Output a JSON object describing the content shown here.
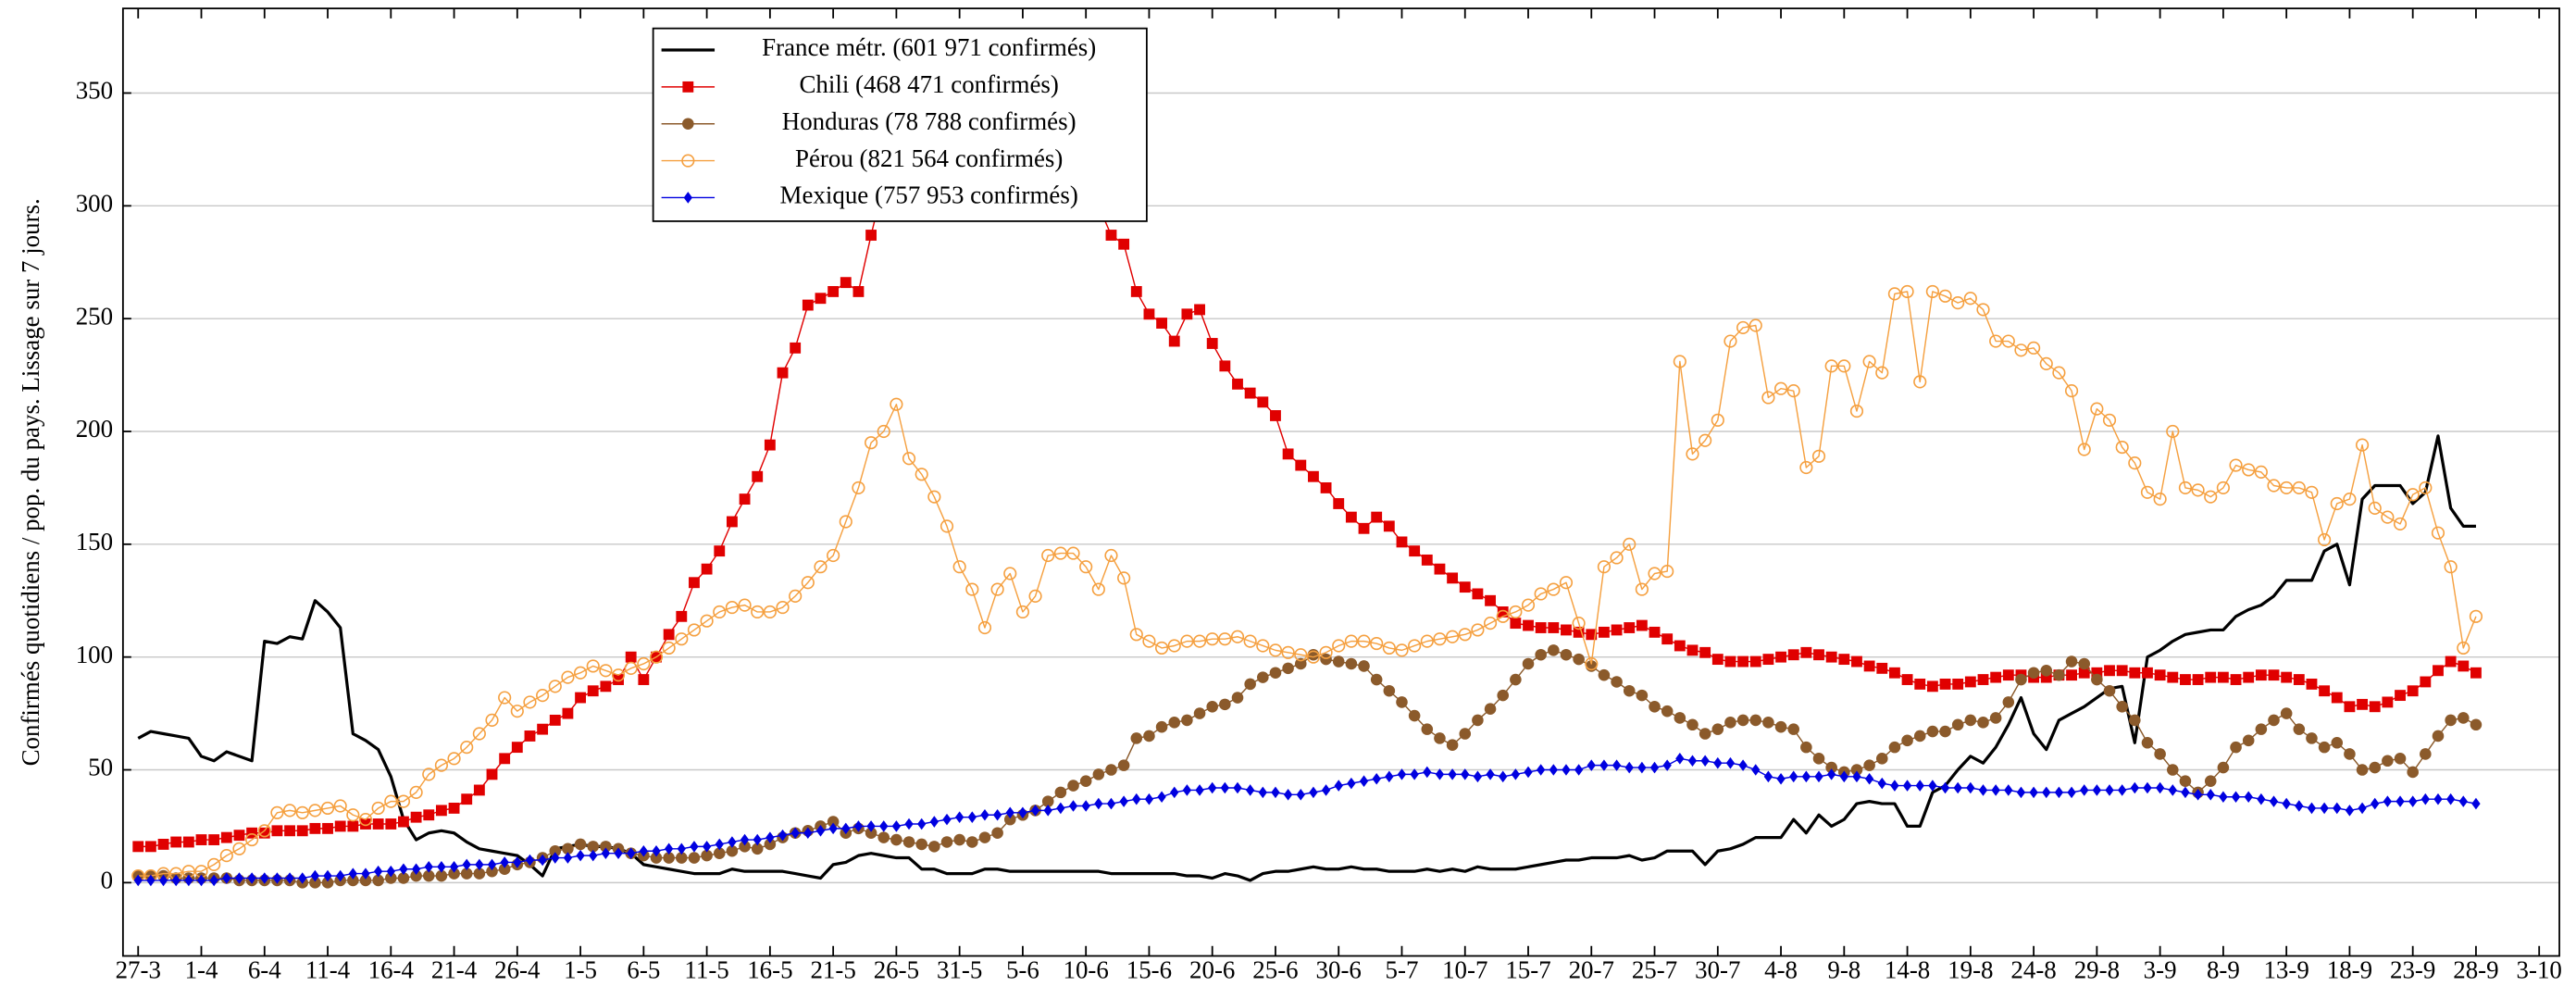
{
  "chart_data": {
    "type": "line",
    "ylabel": "Confirmés quotidiens / pop. du pays. Lissage sur 7 jours.",
    "x": [
      0,
      1,
      2,
      3,
      4,
      5,
      6,
      7,
      8,
      9,
      10,
      11,
      12,
      13,
      14,
      15,
      16,
      17,
      18,
      19,
      20,
      21,
      22,
      23,
      24,
      25,
      26,
      27,
      28,
      29,
      30,
      31,
      32,
      33,
      34,
      35,
      36,
      37,
      38,
      39,
      40,
      41,
      42,
      43,
      44,
      45,
      46,
      47,
      48,
      49,
      50,
      51,
      52,
      53,
      54,
      55,
      56,
      57,
      58,
      59,
      60,
      61,
      62,
      63,
      64,
      65,
      66,
      67,
      68,
      69,
      70,
      71,
      72,
      73,
      74,
      75,
      76,
      77,
      78,
      79,
      80,
      81,
      82,
      83,
      84,
      85,
      86,
      87,
      88,
      89,
      90,
      91,
      92,
      93,
      94,
      95,
      96,
      97,
      98,
      99,
      100,
      101,
      102,
      103,
      104,
      105,
      106,
      107,
      108,
      109,
      110,
      111,
      112,
      113,
      114,
      115,
      116,
      117,
      118,
      119,
      120,
      121,
      122,
      123,
      124,
      125,
      126,
      127,
      128,
      129,
      130,
      131,
      132,
      133,
      134,
      135,
      136,
      137,
      138,
      139,
      140,
      141,
      142,
      143,
      144,
      145,
      146,
      147,
      148,
      149,
      150,
      151,
      152,
      153,
      154,
      155,
      156,
      157,
      158,
      159,
      160,
      161,
      162,
      163,
      164,
      165,
      166,
      167,
      168,
      169,
      170,
      171,
      172,
      173,
      174,
      175,
      176,
      177,
      178,
      179,
      180,
      181,
      182,
      183,
      184,
      185
    ],
    "xlim": [
      -1.2,
      191.6
    ],
    "xticks": [
      {
        "value": 0,
        "label": "27-3"
      },
      {
        "value": 5,
        "label": "1-4"
      },
      {
        "value": 10,
        "label": "6-4"
      },
      {
        "value": 15,
        "label": "11-4"
      },
      {
        "value": 20,
        "label": "16-4"
      },
      {
        "value": 25,
        "label": "21-4"
      },
      {
        "value": 30,
        "label": "26-4"
      },
      {
        "value": 35,
        "label": "1-5"
      },
      {
        "value": 40,
        "label": "6-5"
      },
      {
        "value": 45,
        "label": "11-5"
      },
      {
        "value": 50,
        "label": "16-5"
      },
      {
        "value": 55,
        "label": "21-5"
      },
      {
        "value": 60,
        "label": "26-5"
      },
      {
        "value": 65,
        "label": "31-5"
      },
      {
        "value": 70,
        "label": "5-6"
      },
      {
        "value": 75,
        "label": "10-6"
      },
      {
        "value": 80,
        "label": "15-6"
      },
      {
        "value": 85,
        "label": "20-6"
      },
      {
        "value": 90,
        "label": "25-6"
      },
      {
        "value": 95,
        "label": "30-6"
      },
      {
        "value": 100,
        "label": "5-7"
      },
      {
        "value": 105,
        "label": "10-7"
      },
      {
        "value": 110,
        "label": "15-7"
      },
      {
        "value": 115,
        "label": "20-7"
      },
      {
        "value": 120,
        "label": "25-7"
      },
      {
        "value": 125,
        "label": "30-7"
      },
      {
        "value": 130,
        "label": "4-8"
      },
      {
        "value": 135,
        "label": "9-8"
      },
      {
        "value": 140,
        "label": "14-8"
      },
      {
        "value": 145,
        "label": "19-8"
      },
      {
        "value": 150,
        "label": "24-8"
      },
      {
        "value": 155,
        "label": "29-8"
      },
      {
        "value": 160,
        "label": "3-9"
      },
      {
        "value": 165,
        "label": "8-9"
      },
      {
        "value": 170,
        "label": "13-9"
      },
      {
        "value": 175,
        "label": "18-9"
      },
      {
        "value": 180,
        "label": "23-9"
      },
      {
        "value": 185,
        "label": "28-9"
      },
      {
        "value": 190,
        "label": "3-10"
      }
    ],
    "ylim": [
      -32.5,
      387.5
    ],
    "yticks": [
      0,
      50,
      100,
      150,
      200,
      250,
      300,
      350
    ],
    "grid": true,
    "series": [
      {
        "name": "France métr. (601 971 confirmés)",
        "color": "#000000",
        "marker": "none",
        "values": [
          64,
          67,
          66,
          65,
          64,
          56,
          54,
          58,
          56,
          54,
          107,
          106,
          109,
          108,
          125,
          120,
          113,
          66,
          63,
          59,
          47,
          28,
          19,
          22,
          23,
          22,
          18,
          15,
          14,
          13,
          12,
          8,
          3,
          15,
          16,
          17,
          16,
          16,
          15,
          13,
          8,
          7,
          6,
          5,
          4,
          4,
          4,
          6,
          5,
          5,
          5,
          5,
          4,
          3,
          2,
          8,
          9,
          12,
          13,
          12,
          11,
          11,
          6,
          6,
          4,
          4,
          4,
          6,
          6,
          5,
          5,
          5,
          5,
          5,
          5,
          5,
          5,
          4,
          4,
          4,
          4,
          4,
          4,
          3,
          3,
          2,
          4,
          3,
          1,
          4,
          5,
          5,
          6,
          7,
          6,
          6,
          7,
          6,
          6,
          5,
          5,
          5,
          6,
          5,
          6,
          5,
          7,
          6,
          6,
          6,
          7,
          8,
          9,
          10,
          10,
          11,
          11,
          11,
          12,
          10,
          11,
          14,
          14,
          14,
          8,
          14,
          15,
          17,
          20,
          20,
          20,
          28,
          22,
          30,
          25,
          28,
          35,
          36,
          35,
          35,
          25,
          25,
          40,
          43,
          50,
          56,
          53,
          60,
          70,
          82,
          66,
          59,
          72,
          75,
          78,
          82,
          86,
          87,
          62,
          100,
          103,
          107,
          110,
          111,
          112,
          112,
          118,
          121,
          123,
          127,
          134,
          134,
          134,
          147,
          150,
          132,
          170,
          176,
          176,
          176,
          168,
          173,
          198,
          166,
          158,
          158
        ]
      },
      {
        "name": "Chili (468 471 confirmés)",
        "color": "#e00000",
        "marker": "square",
        "values": [
          16,
          16,
          17,
          18,
          18,
          19,
          19,
          20,
          21,
          22,
          22,
          23,
          23,
          23,
          24,
          24,
          25,
          25,
          26,
          26,
          26,
          27,
          29,
          30,
          32,
          33,
          37,
          41,
          48,
          55,
          60,
          65,
          68,
          72,
          75,
          82,
          85,
          87,
          90,
          100,
          90,
          100,
          110,
          118,
          133,
          139,
          147,
          160,
          170,
          180,
          194,
          226,
          237,
          256,
          259,
          262,
          266,
          262,
          287,
          310,
          325,
          335,
          342,
          348,
          352,
          355,
          356,
          355,
          352,
          348,
          343,
          338,
          332,
          325,
          316,
          307,
          300,
          287,
          283,
          262,
          252,
          248,
          240,
          252,
          254,
          239,
          229,
          221,
          217,
          213,
          207,
          190,
          185,
          180,
          175,
          168,
          162,
          157,
          162,
          158,
          151,
          147,
          143,
          139,
          135,
          131,
          128,
          125,
          120,
          115,
          114,
          113,
          113,
          112,
          111,
          110,
          111,
          112,
          113,
          114,
          111,
          108,
          105,
          103,
          102,
          99,
          98,
          98,
          98,
          99,
          100,
          101,
          102,
          101,
          100,
          99,
          98,
          96,
          95,
          93,
          90,
          88,
          87,
          88,
          88,
          89,
          90,
          91,
          92,
          92,
          91,
          91,
          92,
          92,
          93,
          93,
          94,
          94,
          93,
          93,
          92,
          91,
          90,
          90,
          91,
          91,
          90,
          91,
          92,
          92,
          91,
          90,
          88,
          85,
          82,
          78,
          79,
          78,
          80,
          83,
          85,
          89,
          94,
          98,
          96,
          93
        ]
      },
      {
        "name": "Honduras (78 788 confirmés)",
        "color": "#8b5a2b",
        "marker": "circle",
        "values": [
          3,
          3,
          3,
          2,
          2,
          2,
          2,
          2,
          1,
          1,
          1,
          1,
          1,
          0,
          0,
          0,
          1,
          1,
          1,
          1,
          2,
          2,
          3,
          3,
          3,
          4,
          4,
          4,
          5,
          6,
          8,
          9,
          11,
          14,
          15,
          17,
          16,
          16,
          15,
          13,
          12,
          11,
          11,
          11,
          11,
          12,
          13,
          14,
          16,
          15,
          17,
          20,
          22,
          23,
          25,
          27,
          22,
          24,
          22,
          20,
          19,
          18,
          17,
          16,
          18,
          19,
          18,
          20,
          22,
          28,
          30,
          32,
          36,
          40,
          43,
          45,
          48,
          50,
          52,
          64,
          65,
          69,
          71,
          72,
          75,
          78,
          79,
          82,
          88,
          91,
          93,
          95,
          97,
          101,
          99,
          98,
          97,
          96,
          90,
          85,
          80,
          74,
          68,
          64,
          61,
          66,
          72,
          77,
          83,
          90,
          97,
          101,
          103,
          101,
          99,
          96,
          92,
          89,
          85,
          83,
          78,
          76,
          73,
          70,
          66,
          68,
          71,
          72,
          72,
          71,
          69,
          68,
          60,
          55,
          51,
          49,
          50,
          52,
          55,
          60,
          63,
          65,
          67,
          67,
          70,
          72,
          71,
          73,
          80,
          90,
          93,
          94,
          92,
          98,
          97,
          90,
          85,
          78,
          72,
          62,
          57,
          50,
          45,
          40,
          45,
          51,
          60,
          63,
          68,
          72,
          75,
          68,
          64,
          60,
          62,
          57,
          50,
          51,
          54,
          55,
          49,
          57,
          65,
          72,
          73,
          70
        ]
      },
      {
        "name": "Pérou (821 564 confirmés)",
        "color": "#f5a040",
        "marker": "circle-open",
        "values": [
          3,
          3,
          4,
          4,
          5,
          5,
          8,
          12,
          15,
          19,
          23,
          31,
          32,
          31,
          32,
          33,
          34,
          30,
          28,
          33,
          36,
          36,
          40,
          48,
          52,
          55,
          60,
          66,
          72,
          82,
          76,
          80,
          83,
          87,
          91,
          93,
          96,
          94,
          92,
          95,
          97,
          100,
          104,
          108,
          112,
          116,
          120,
          122,
          123,
          120,
          120,
          122,
          127,
          133,
          140,
          145,
          160,
          175,
          195,
          200,
          212,
          188,
          181,
          171,
          158,
          140,
          130,
          113,
          130,
          137,
          120,
          127,
          145,
          146,
          146,
          140,
          130,
          145,
          135,
          110,
          107,
          104,
          105,
          107,
          107,
          108,
          108,
          109,
          107,
          105,
          103,
          102,
          101,
          100,
          102,
          105,
          107,
          107,
          106,
          104,
          103,
          105,
          107,
          108,
          109,
          110,
          112,
          115,
          118,
          120,
          123,
          128,
          130,
          133,
          115,
          97,
          140,
          144,
          150,
          130,
          137,
          138,
          231,
          190,
          196,
          205,
          240,
          246,
          247,
          215,
          219,
          218,
          184,
          189,
          229,
          229,
          209,
          231,
          226,
          261,
          262,
          222,
          262,
          260,
          257,
          259,
          254,
          240,
          240,
          236,
          237,
          230,
          226,
          218,
          192,
          210,
          205,
          193,
          186,
          173,
          170,
          200,
          175,
          174,
          171,
          175,
          185,
          183,
          182,
          176,
          175,
          175,
          173,
          152,
          168,
          170,
          194,
          166,
          162,
          159,
          172,
          175,
          155,
          140,
          104,
          118
        ]
      },
      {
        "name": "Mexique (757 953 confirmés)",
        "color": "#0000e0",
        "marker": "diamond",
        "values": [
          1,
          1,
          1,
          1,
          1,
          1,
          1,
          2,
          2,
          2,
          2,
          2,
          2,
          2,
          3,
          3,
          3,
          4,
          4,
          5,
          5,
          6,
          6,
          7,
          7,
          7,
          8,
          8,
          8,
          9,
          9,
          10,
          10,
          11,
          11,
          12,
          12,
          13,
          13,
          13,
          14,
          14,
          15,
          15,
          16,
          16,
          17,
          18,
          19,
          19,
          20,
          21,
          22,
          22,
          23,
          24,
          24,
          25,
          25,
          25,
          25,
          26,
          26,
          27,
          28,
          29,
          29,
          30,
          30,
          31,
          31,
          32,
          32,
          33,
          34,
          34,
          35,
          35,
          36,
          37,
          37,
          38,
          40,
          41,
          41,
          42,
          42,
          42,
          41,
          40,
          40,
          39,
          39,
          40,
          41,
          43,
          44,
          45,
          46,
          47,
          48,
          48,
          49,
          48,
          48,
          48,
          47,
          48,
          47,
          48,
          49,
          50,
          50,
          50,
          50,
          52,
          52,
          52,
          51,
          51,
          51,
          52,
          55,
          54,
          54,
          53,
          53,
          52,
          50,
          47,
          46,
          47,
          47,
          47,
          48,
          47,
          47,
          46,
          44,
          43,
          43,
          43,
          43,
          42,
          42,
          42,
          41,
          41,
          41,
          40,
          40,
          40,
          40,
          40,
          41,
          41,
          41,
          41,
          42,
          42,
          42,
          41,
          40,
          39,
          39,
          38,
          38,
          38,
          37,
          36,
          35,
          34,
          33,
          33,
          33,
          32,
          33,
          35,
          36,
          36,
          36,
          37,
          37,
          37,
          36,
          35
        ]
      }
    ]
  }
}
